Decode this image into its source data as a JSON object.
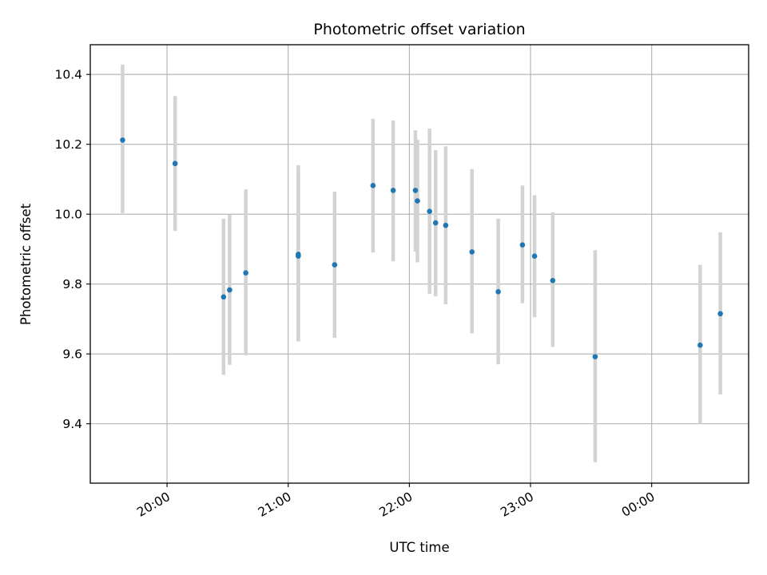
{
  "chart_data": {
    "type": "scatter",
    "title": "Photometric offset variation",
    "xlabel": "UTC time",
    "ylabel": "Photometric offset",
    "x_is_time": true,
    "x_ticks": [
      "20:00",
      "21:00",
      "22:00",
      "23:00",
      "00:00"
    ],
    "xlim": [
      "19:22",
      "00:48"
    ],
    "ylim": [
      9.23,
      10.485
    ],
    "y_ticks": [
      9.4,
      9.6,
      9.8,
      10.0,
      10.2,
      10.4
    ],
    "grid": true,
    "colors": {
      "point": "#1f77b4",
      "errorbar": "#d3d3d3",
      "grid": "#b0b0b0"
    },
    "points": [
      {
        "t": "19:38",
        "y": 10.212,
        "lo": 10.003,
        "hi": 10.428
      },
      {
        "t": "20:04",
        "y": 10.145,
        "lo": 9.952,
        "hi": 10.338
      },
      {
        "t": "20:28",
        "y": 9.763,
        "lo": 9.54,
        "hi": 9.987
      },
      {
        "t": "20:31",
        "y": 9.783,
        "lo": 9.569,
        "hi": 9.998
      },
      {
        "t": "20:39",
        "y": 9.832,
        "lo": 9.596,
        "hi": 10.071
      },
      {
        "t": "21:05",
        "y": 9.885,
        "lo": 9.636,
        "hi": 10.14
      },
      {
        "t": "21:05",
        "y": 9.88,
        "lo": 9.636,
        "hi": 10.127
      },
      {
        "t": "21:23",
        "y": 9.855,
        "lo": 9.646,
        "hi": 10.064
      },
      {
        "t": "21:42",
        "y": 10.082,
        "lo": 9.89,
        "hi": 10.273
      },
      {
        "t": "21:52",
        "y": 10.068,
        "lo": 9.865,
        "hi": 10.268
      },
      {
        "t": "22:03",
        "y": 10.068,
        "lo": 9.893,
        "hi": 10.24
      },
      {
        "t": "22:04",
        "y": 10.038,
        "lo": 9.862,
        "hi": 10.213
      },
      {
        "t": "22:10",
        "y": 10.008,
        "lo": 9.772,
        "hi": 10.245
      },
      {
        "t": "22:13",
        "y": 9.975,
        "lo": 9.765,
        "hi": 10.183
      },
      {
        "t": "22:18",
        "y": 9.968,
        "lo": 9.742,
        "hi": 10.194
      },
      {
        "t": "22:31",
        "y": 9.892,
        "lo": 9.659,
        "hi": 10.129
      },
      {
        "t": "22:44",
        "y": 9.778,
        "lo": 9.57,
        "hi": 9.987
      },
      {
        "t": "22:56",
        "y": 9.912,
        "lo": 9.745,
        "hi": 10.082
      },
      {
        "t": "23:02",
        "y": 9.88,
        "lo": 9.705,
        "hi": 10.054
      },
      {
        "t": "23:11",
        "y": 9.81,
        "lo": 9.62,
        "hi": 10.005
      },
      {
        "t": "23:32",
        "y": 9.592,
        "lo": 9.29,
        "hi": 9.897
      },
      {
        "t": "00:24",
        "y": 9.625,
        "lo": 9.4,
        "hi": 9.855
      },
      {
        "t": "00:34",
        "y": 9.715,
        "lo": 9.484,
        "hi": 9.948
      }
    ]
  }
}
